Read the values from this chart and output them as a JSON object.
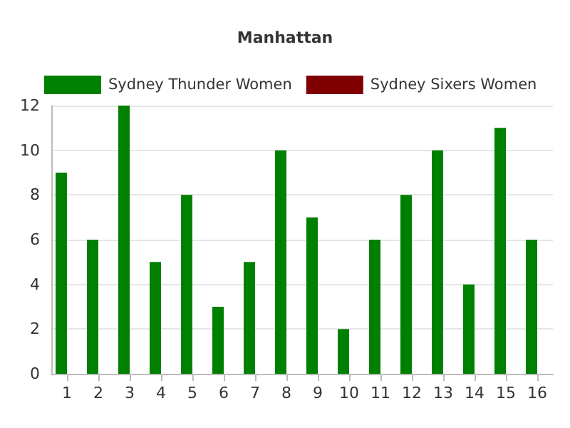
{
  "chart_data": {
    "type": "bar",
    "title": "Manhattan",
    "categories": [
      "1",
      "2",
      "3",
      "4",
      "5",
      "6",
      "7",
      "8",
      "9",
      "10",
      "11",
      "12",
      "13",
      "14",
      "15",
      "16"
    ],
    "series": [
      {
        "name": "Sydney Thunder Women",
        "color": "#008000",
        "values": [
          9,
          6,
          12,
          5,
          8,
          3,
          5,
          10,
          7,
          2,
          6,
          8,
          10,
          4,
          11,
          6
        ]
      },
      {
        "name": "Sydney Sixers Women",
        "color": "#800000",
        "values": [
          null,
          null,
          null,
          null,
          null,
          null,
          null,
          null,
          null,
          null,
          null,
          null,
          null,
          null,
          null,
          null
        ]
      }
    ],
    "ylim": [
      0,
      12
    ],
    "yticks": [
      0,
      2,
      4,
      6,
      8,
      10,
      12
    ],
    "grid": "y",
    "legend": "top left"
  }
}
